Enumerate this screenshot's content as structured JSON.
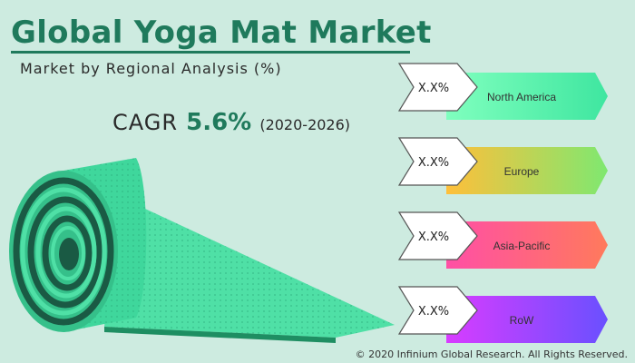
{
  "header": {
    "title": "Global Yoga Mat Market",
    "subtitle": "Market by Regional Analysis (%)"
  },
  "cagr": {
    "label": "CAGR",
    "value": "5.6%",
    "period": "(2020-2026)"
  },
  "footer": {
    "copyright": "© 2020 Infinium Global Research. All Rights Reserved."
  },
  "colors": {
    "background": "#cdebe0",
    "title": "#1f7a5c",
    "mat_main": "#4fe0a6",
    "mat_side": "#35c08a",
    "mat_dark": "#1e8e62"
  },
  "chart_data": {
    "type": "table",
    "categories": [
      "North America",
      "Europe",
      "Asia-Pacific",
      "RoW"
    ],
    "values": [
      "X.X%",
      "X.X%",
      "X.X%",
      "X.X%"
    ],
    "category_colors": [
      [
        "#7fffbe",
        "#3fe6a0"
      ],
      [
        "#ffbf3a",
        "#7fe870"
      ],
      [
        "#ff4fa5",
        "#ff7a5c"
      ],
      [
        "#d83cff",
        "#6a50ff"
      ]
    ]
  }
}
